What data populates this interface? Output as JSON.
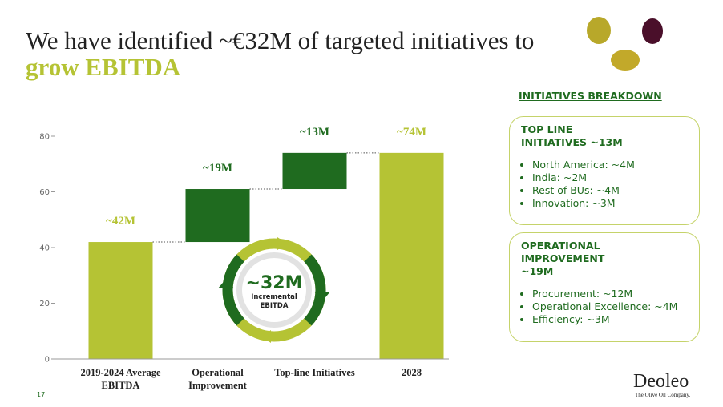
{
  "title_parts": [
    "We have identified ~€32M of targeted initiatives to",
    "grow EBITDA"
  ],
  "chart_data": {
    "type": "waterfall",
    "categories": [
      "2019-2024 Average EBITDA",
      "Operational Improvement",
      "Top-line Initiatives",
      "2028"
    ],
    "values": [
      42,
      19,
      13,
      74
    ],
    "value_labels": [
      "~42M",
      "~19M",
      "~13M",
      "~74M"
    ],
    "measures": [
      "absolute",
      "relative",
      "relative",
      "total"
    ],
    "colors": [
      "#b5c334",
      "#1f6b1f",
      "#1f6b1f",
      "#b5c334"
    ],
    "ylim": [
      0,
      80
    ],
    "yticks": [
      0,
      20,
      40,
      60,
      80
    ],
    "annotation": {
      "label": "~32M",
      "text": "Incremental EBITDA"
    }
  },
  "breakdown": {
    "heading": "INITIATIVES BREAKDOWN",
    "boxes": [
      {
        "title": "TOP LINE INITIATIVES ~13M",
        "items": [
          "North America: ~4M",
          "India: ~2M",
          "Rest of BUs: ~4M",
          "Innovation: ~3M"
        ]
      },
      {
        "title": "OPERATIONAL IMPROVEMENT ~19M",
        "items": [
          "Procurement: ~12M",
          "Operational Excellence: ~4M",
          "Efficiency: ~3M"
        ]
      }
    ]
  },
  "page_number": "17",
  "logo": {
    "name": "Deoleo",
    "tagline": "The Olive Oil Company."
  }
}
